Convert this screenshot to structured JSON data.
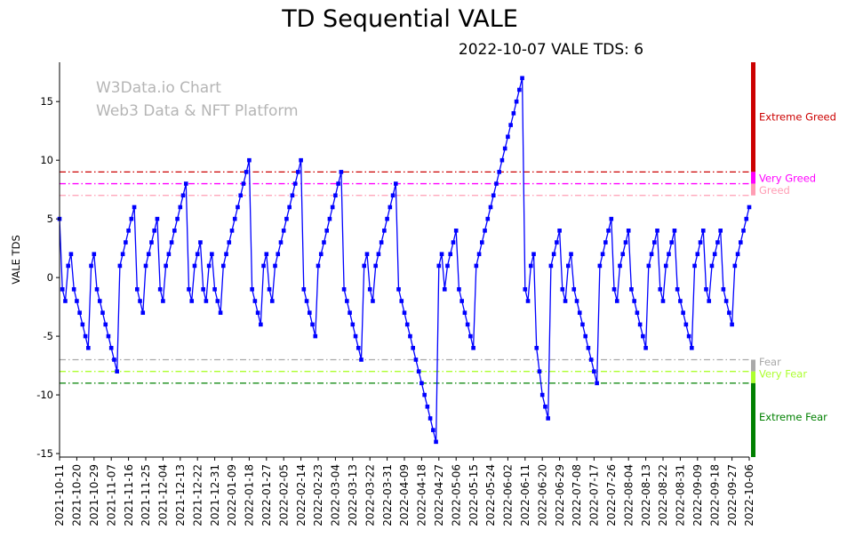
{
  "title": "TD Sequential VALE",
  "subtitle": "2022-10-07 VALE TDS: 6",
  "watermark": {
    "line1": "W3Data.io Chart",
    "line2": "Web3 Data & NFT Platform"
  },
  "ylabel": "VALE TDS",
  "chart_data": {
    "type": "line",
    "marker": "square",
    "line_color": "#0000ff",
    "grid": false,
    "legend_position": "right",
    "ylim": [
      -15.3,
      18.35
    ],
    "y_ticks": [
      -15,
      -10,
      -5,
      0,
      5,
      10,
      15
    ],
    "x_tick_interval": 6,
    "x_tick_labels": [
      "2021-10-11",
      "2021-10-20",
      "2021-10-29",
      "2021-11-07",
      "2021-11-16",
      "2021-11-25",
      "2021-12-04",
      "2021-12-13",
      "2021-12-22",
      "2021-12-31",
      "2022-01-09",
      "2022-01-18",
      "2022-01-27",
      "2022-02-05",
      "2022-02-14",
      "2022-02-23",
      "2022-03-04",
      "2022-03-13",
      "2022-03-22",
      "2022-03-31",
      "2022-04-09",
      "2022-04-18",
      "2022-04-27",
      "2022-05-06",
      "2022-05-15",
      "2022-05-24",
      "2022-06-02",
      "2022-06-11",
      "2022-06-20",
      "2022-06-29",
      "2022-07-08",
      "2022-07-17",
      "2022-07-26",
      "2022-08-04",
      "2022-08-13",
      "2022-08-22",
      "2022-08-31",
      "2022-09-09",
      "2022-09-18",
      "2022-09-27",
      "2022-10-06"
    ],
    "values": [
      5,
      -1,
      -2,
      1,
      2,
      -1,
      -2,
      -3,
      -4,
      -5,
      -6,
      1,
      2,
      -1,
      -2,
      -3,
      -4,
      -5,
      -6,
      -7,
      -8,
      1,
      2,
      3,
      4,
      5,
      6,
      -1,
      -2,
      -3,
      1,
      2,
      3,
      4,
      5,
      -1,
      -2,
      1,
      2,
      3,
      4,
      5,
      6,
      7,
      8,
      -1,
      -2,
      1,
      2,
      3,
      -1,
      -2,
      1,
      2,
      -1,
      -2,
      -3,
      1,
      2,
      3,
      4,
      5,
      6,
      7,
      8,
      9,
      10,
      -1,
      -2,
      -3,
      -4,
      1,
      2,
      -1,
      -2,
      1,
      2,
      3,
      4,
      5,
      6,
      7,
      8,
      9,
      10,
      -1,
      -2,
      -3,
      -4,
      -5,
      1,
      2,
      3,
      4,
      5,
      6,
      7,
      8,
      9,
      -1,
      -2,
      -3,
      -4,
      -5,
      -6,
      -7,
      1,
      2,
      -1,
      -2,
      1,
      2,
      3,
      4,
      5,
      6,
      7,
      8,
      -1,
      -2,
      -3,
      -4,
      -5,
      -6,
      -7,
      -8,
      -9,
      -10,
      -11,
      -12,
      -13,
      -14,
      1,
      2,
      -1,
      1,
      2,
      3,
      4,
      -1,
      -2,
      -3,
      -4,
      -5,
      -6,
      1,
      2,
      3,
      4,
      5,
      6,
      7,
      8,
      9,
      10,
      11,
      12,
      13,
      14,
      15,
      16,
      17,
      -1,
      -2,
      1,
      2,
      -6,
      -8,
      -10,
      -11,
      -12,
      1,
      2,
      3,
      4,
      -1,
      -2,
      1,
      2,
      -1,
      -2,
      -3,
      -4,
      -5,
      -6,
      -7,
      -8,
      -9,
      1,
      2,
      3,
      4,
      5,
      -1,
      -2,
      1,
      2,
      3,
      4,
      -1,
      -2,
      -3,
      -4,
      -5,
      -6,
      1,
      2,
      3,
      4,
      -1,
      -2,
      1,
      2,
      3,
      4,
      -1,
      -2,
      -3,
      -4,
      -5,
      -6,
      1,
      2,
      3,
      4,
      -1,
      -2,
      1,
      2,
      3,
      4,
      -1,
      -2,
      -3,
      -4,
      1,
      2,
      3,
      4,
      5,
      6
    ],
    "thresholds": [
      {
        "label": "Extreme Greed",
        "value": 9,
        "color": "#cc0000",
        "zone": [
          9,
          18.35
        ],
        "label_y": 13.7
      },
      {
        "label": "Very Greed",
        "value": 8,
        "color": "#ff00ff",
        "zone": [
          8,
          9
        ],
        "label_y": 8.45
      },
      {
        "label": "Greed",
        "value": 7,
        "color": "#ff9db4",
        "zone": [
          7,
          8
        ],
        "label_y": 7.45
      },
      {
        "label": "Fear",
        "value": -7,
        "color": "#a9a9a9",
        "zone": [
          -8,
          -7
        ],
        "label_y": -7.2
      },
      {
        "label": "Very Fear",
        "value": -8,
        "color": "#adff2f",
        "zone": [
          -9,
          -8
        ],
        "label_y": -8.2
      },
      {
        "label": "Extreme Fear",
        "value": -9,
        "color": "#008000",
        "zone": [
          -15.3,
          -9
        ],
        "label_y": -11.9
      }
    ]
  }
}
